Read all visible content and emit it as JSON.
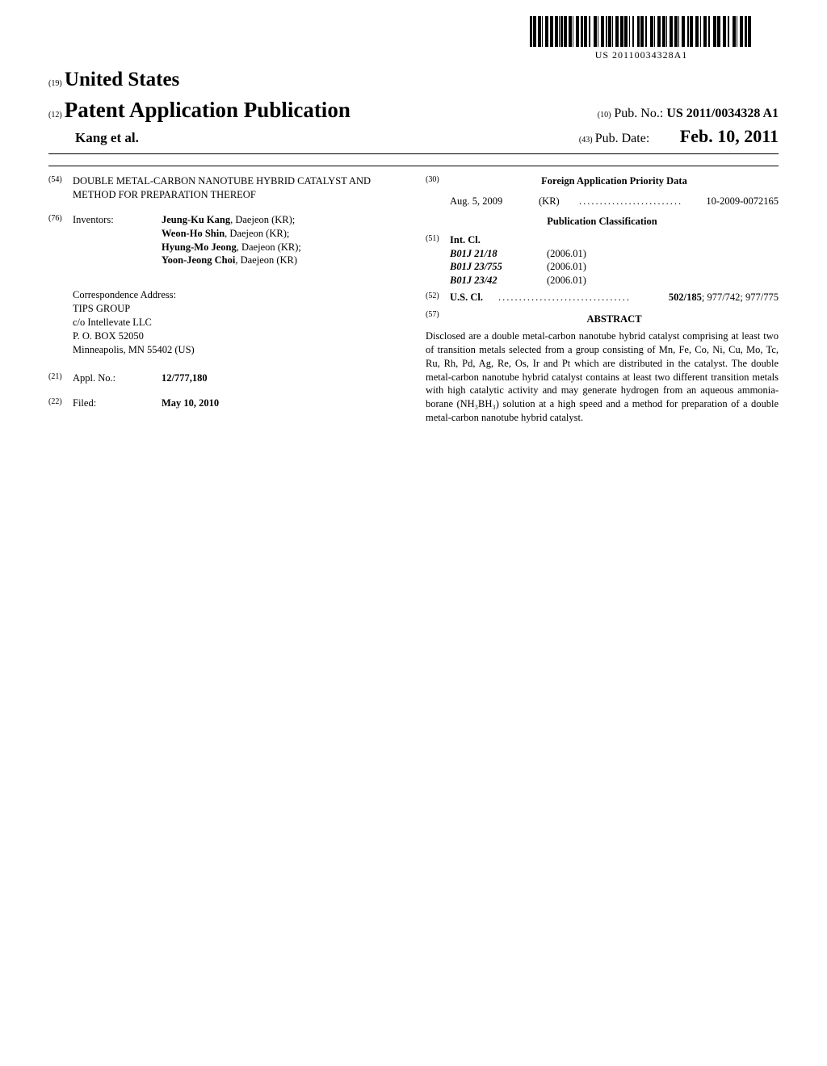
{
  "barcode": {
    "number": "US 20110034328A1",
    "pattern": [
      3,
      1,
      4,
      2,
      4,
      1,
      1,
      3,
      4,
      2,
      4,
      2,
      4,
      1,
      1,
      1,
      3,
      1,
      4,
      2,
      4,
      1,
      1,
      3,
      4,
      2,
      3,
      1,
      4,
      2,
      2,
      4,
      4,
      1,
      1,
      3,
      4,
      2,
      2,
      1,
      4,
      1,
      1,
      3,
      4,
      2,
      4,
      1,
      4,
      2,
      1,
      3,
      2,
      4,
      3,
      1,
      4,
      2,
      2,
      4,
      4,
      1,
      1,
      3,
      4,
      2,
      4,
      1,
      1,
      3,
      4,
      2,
      4,
      1,
      1,
      3,
      4,
      3,
      2,
      1,
      4,
      3,
      4,
      2,
      1,
      3,
      4,
      2,
      2,
      4,
      4,
      1,
      4,
      3,
      4,
      2,
      2,
      4,
      4,
      1,
      1,
      3,
      4,
      2,
      3,
      1,
      4,
      2
    ]
  },
  "header": {
    "code19": "(19)",
    "country": "United States",
    "code12": "(12)",
    "pubType": "Patent Application Publication",
    "authors": "Kang et al.",
    "code10": "(10)",
    "pubNoLabel": "Pub. No.:",
    "pubNo": "US 2011/0034328 A1",
    "code43": "(43)",
    "pubDateLabel": "Pub. Date:",
    "pubDate": "Feb. 10, 2011"
  },
  "left": {
    "titleCode": "(54)",
    "title": "DOUBLE METAL-CARBON NANOTUBE HYBRID CATALYST AND METHOD FOR PREPARATION THEREOF",
    "inventorsCode": "(76)",
    "inventorsLabel": "Inventors:",
    "inventors": [
      {
        "name": "Jeung-Ku Kang",
        "loc": ", Daejeon (KR);"
      },
      {
        "name": "Weon-Ho Shin",
        "loc": ", Daejeon (KR);"
      },
      {
        "name": "Hyung-Mo Jeong",
        "loc": ", Daejeon (KR);"
      },
      {
        "name": "Yoon-Jeong Choi",
        "loc": ", Daejeon (KR)"
      }
    ],
    "corrLabel": "Correspondence Address:",
    "corr1": "TIPS GROUP",
    "corr2": "c/o Intellevate LLC",
    "corr3": "P. O. BOX 52050",
    "corr4": "Minneapolis, MN 55402 (US)",
    "applCode": "(21)",
    "applLabel": "Appl. No.:",
    "applNo": "12/777,180",
    "filedCode": "(22)",
    "filedLabel": "Filed:",
    "filedDate": "May 10, 2010"
  },
  "right": {
    "foreignCode": "(30)",
    "foreignHeading": "Foreign Application Priority Data",
    "foreign": {
      "date": "Aug. 5, 2009",
      "country": "(KR)",
      "num": "10-2009-0072165"
    },
    "pubClassHeading": "Publication Classification",
    "intClCode": "(51)",
    "intClLabel": "Int. Cl.",
    "intCl": [
      {
        "code": "B01J 21/18",
        "ver": "(2006.01)"
      },
      {
        "code": "B01J 23/755",
        "ver": "(2006.01)"
      },
      {
        "code": "B01J 23/42",
        "ver": "(2006.01)"
      }
    ],
    "usClCode": "(52)",
    "usClLabel": "U.S. Cl.",
    "usClFirst": "502/185",
    "usClRest": "; 977/742; 977/775",
    "abstractCode": "(57)",
    "abstractHeading": "ABSTRACT",
    "abstract": "Disclosed are a double metal-carbon nanotube hybrid catalyst comprising at least two of transition metals selected from a group consisting of Mn, Fe, Co, Ni, Cu, Mo, Tc, Ru, Rh, Pd, Ag, Re, Os, Ir and Pt which are distributed in the catalyst. The double metal-carbon nanotube hybrid catalyst contains at least two different transition metals with high catalytic activity and may generate hydrogen from an aqueous ammonia-borane (NH₃BH₃) solution at a high speed and a method for preparation of a double metal-carbon nanotube hybrid catalyst."
  }
}
